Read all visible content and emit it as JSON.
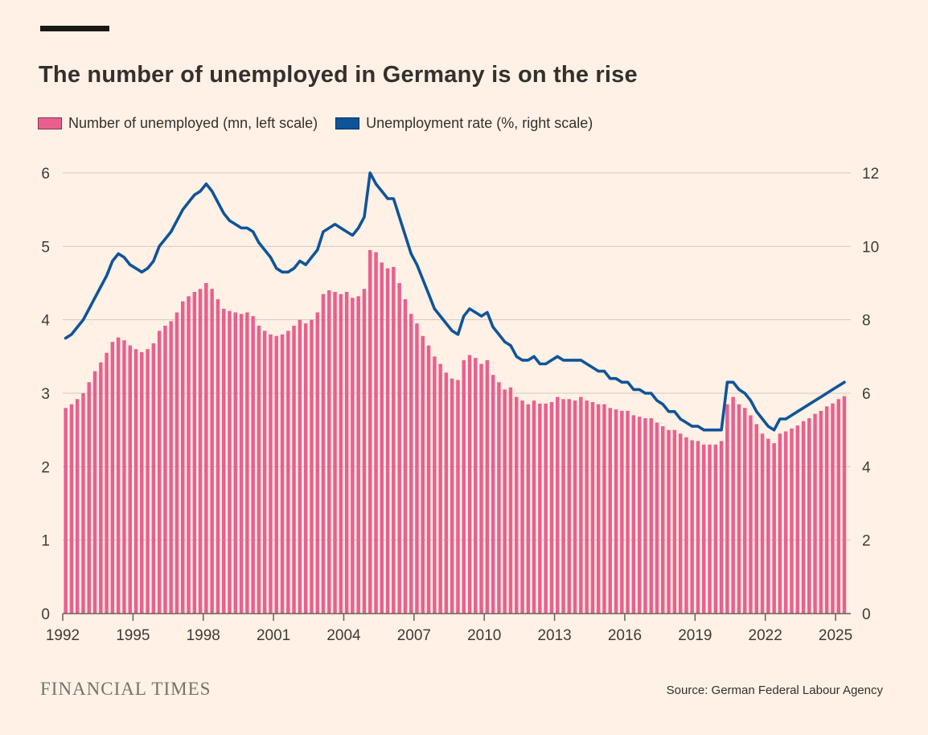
{
  "header": {
    "title": "The number of unemployed in Germany is on the rise"
  },
  "legend": [
    {
      "label": "Number of unemployed (mn, left scale)",
      "color": "#e9608e"
    },
    {
      "label": "Unemployment rate (%, right scale)",
      "color": "#0f5499"
    }
  ],
  "footer": {
    "brand": "FINANCIAL TIMES",
    "source": "Source: German Federal Labour Agency"
  },
  "chart_data": {
    "type": "combo",
    "title": "The number of unemployed in Germany is on the rise",
    "x_start": 1992.125,
    "x_step": 0.25,
    "x_range": [
      1992,
      2025.65
    ],
    "x_ticks": [
      1992,
      1995,
      1998,
      2001,
      2004,
      2007,
      2010,
      2013,
      2016,
      2019,
      2022,
      2025
    ],
    "left_axis": {
      "label": "Number of unemployed (mn)",
      "range": [
        0,
        6
      ],
      "ticks": [
        0,
        1,
        2,
        3,
        4,
        5,
        6
      ]
    },
    "right_axis": {
      "label": "Unemployment rate (%)",
      "range": [
        0,
        12
      ],
      "ticks": [
        0,
        2,
        4,
        6,
        8,
        10,
        12
      ]
    },
    "grid": true,
    "legend_position": "top",
    "series": [
      {
        "name": "Number of unemployed (mn, left scale)",
        "type": "bar",
        "axis": "left",
        "color": "#e9608e",
        "values": [
          2.8,
          2.85,
          2.92,
          3.0,
          3.15,
          3.3,
          3.42,
          3.55,
          3.7,
          3.76,
          3.72,
          3.65,
          3.6,
          3.56,
          3.6,
          3.68,
          3.85,
          3.92,
          3.98,
          4.1,
          4.25,
          4.32,
          4.38,
          4.42,
          4.5,
          4.42,
          4.28,
          4.15,
          4.12,
          4.1,
          4.08,
          4.1,
          4.05,
          3.92,
          3.85,
          3.8,
          3.78,
          3.8,
          3.85,
          3.92,
          4.0,
          3.95,
          4.0,
          4.1,
          4.35,
          4.4,
          4.38,
          4.35,
          4.38,
          4.3,
          4.32,
          4.42,
          4.95,
          4.92,
          4.78,
          4.7,
          4.72,
          4.5,
          4.28,
          4.08,
          3.95,
          3.78,
          3.65,
          3.5,
          3.4,
          3.28,
          3.2,
          3.18,
          3.45,
          3.52,
          3.48,
          3.4,
          3.45,
          3.25,
          3.15,
          3.05,
          3.08,
          2.95,
          2.9,
          2.85,
          2.9,
          2.86,
          2.86,
          2.88,
          2.95,
          2.92,
          2.92,
          2.9,
          2.95,
          2.9,
          2.88,
          2.85,
          2.85,
          2.8,
          2.78,
          2.76,
          2.76,
          2.7,
          2.68,
          2.66,
          2.66,
          2.6,
          2.55,
          2.5,
          2.5,
          2.45,
          2.4,
          2.36,
          2.35,
          2.3,
          2.3,
          2.3,
          2.35,
          2.85,
          2.95,
          2.85,
          2.8,
          2.7,
          2.58,
          2.45,
          2.38,
          2.32,
          2.45,
          2.48,
          2.52,
          2.56,
          2.62,
          2.66,
          2.72,
          2.76,
          2.82,
          2.86,
          2.92,
          2.96
        ]
      },
      {
        "name": "Unemployment rate (%, right scale)",
        "type": "line",
        "axis": "right",
        "color": "#0f5499",
        "values": [
          7.5,
          7.6,
          7.8,
          8.0,
          8.3,
          8.6,
          8.9,
          9.2,
          9.6,
          9.8,
          9.7,
          9.5,
          9.4,
          9.3,
          9.4,
          9.6,
          10.0,
          10.2,
          10.4,
          10.7,
          11.0,
          11.2,
          11.4,
          11.5,
          11.7,
          11.5,
          11.2,
          10.9,
          10.7,
          10.6,
          10.5,
          10.5,
          10.4,
          10.1,
          9.9,
          9.7,
          9.4,
          9.3,
          9.3,
          9.4,
          9.6,
          9.5,
          9.7,
          9.9,
          10.4,
          10.5,
          10.6,
          10.5,
          10.4,
          10.3,
          10.5,
          10.8,
          12.0,
          11.7,
          11.5,
          11.3,
          11.3,
          10.8,
          10.3,
          9.8,
          9.5,
          9.1,
          8.7,
          8.3,
          8.1,
          7.9,
          7.7,
          7.6,
          8.1,
          8.3,
          8.2,
          8.1,
          8.2,
          7.8,
          7.6,
          7.4,
          7.3,
          7.0,
          6.9,
          6.9,
          7.0,
          6.8,
          6.8,
          6.9,
          7.0,
          6.9,
          6.9,
          6.9,
          6.9,
          6.8,
          6.7,
          6.6,
          6.6,
          6.4,
          6.4,
          6.3,
          6.3,
          6.1,
          6.1,
          6.0,
          6.0,
          5.8,
          5.7,
          5.5,
          5.5,
          5.3,
          5.2,
          5.1,
          5.1,
          5.0,
          5.0,
          5.0,
          5.0,
          6.3,
          6.3,
          6.1,
          6.0,
          5.8,
          5.5,
          5.3,
          5.1,
          5.0,
          5.3,
          5.3,
          5.4,
          5.5,
          5.6,
          5.7,
          5.8,
          5.9,
          6.0,
          6.1,
          6.2,
          6.3
        ]
      }
    ]
  }
}
